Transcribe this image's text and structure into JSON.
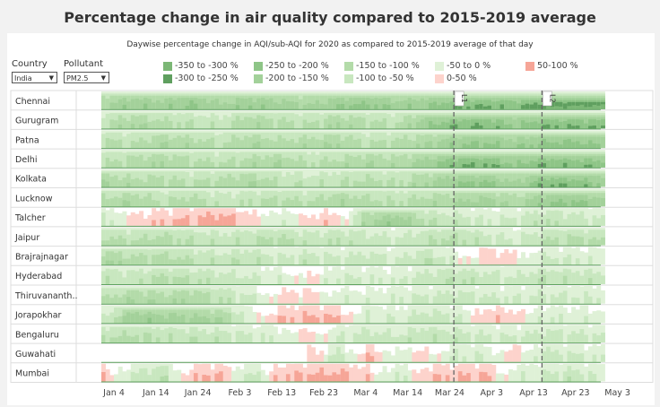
{
  "title": "Percentage change in air quality compared to 2015-2019 average",
  "filters": {
    "country_label": "Country",
    "country_value": "India",
    "pollutant_label": "Pollutant",
    "pollutant_value": "PM2.5"
  },
  "chart_data": {
    "type": "area",
    "subtitle": "Daywise percentage change in AQI/sub-AQI for 2020 as compared to 2015-2019 average of that day",
    "legend": [
      {
        "label": "-350 to -300 %",
        "color": "#7cb776"
      },
      {
        "label": "-300 to -250 %",
        "color": "#5f9f5f"
      },
      {
        "label": "-250 to -200 %",
        "color": "#8ec587"
      },
      {
        "label": "-200 to -150 %",
        "color": "#a3d19a"
      },
      {
        "label": "-150 to -100 %",
        "color": "#b3dba9"
      },
      {
        "label": "-100 to -50 %",
        "color": "#c8e7bf"
      },
      {
        "label": "-50 to 0 %",
        "color": "#dff1d7"
      },
      {
        "label": "0-50 %",
        "color": "#fdd3cc"
      },
      {
        "label": "50-100 %",
        "color": "#f6a597"
      }
    ],
    "x_ticks": [
      "Jan 4",
      "Jan 14",
      "Jan 24",
      "Feb 3",
      "Feb 13",
      "Feb 23",
      "Mar 4",
      "Mar 14",
      "Mar 24",
      "Apr 3",
      "Apr 13",
      "Apr 23",
      "May 3"
    ],
    "annotations": [
      {
        "label": "L1",
        "date": "Mar 25"
      },
      {
        "label": "L2",
        "date": "Apr 15"
      }
    ],
    "sample_interval_days": 7,
    "start_date": "Jan 1",
    "series": [
      {
        "name": "Chennai",
        "values": [
          -150,
          -200,
          -180,
          -220,
          -160,
          -200,
          -180,
          -150,
          -200,
          -220,
          -180,
          -200,
          -250,
          -260,
          -240,
          -300,
          -320,
          -330
        ]
      },
      {
        "name": "Gurugram",
        "values": [
          -100,
          -150,
          -120,
          -100,
          -80,
          -150,
          -120,
          -100,
          -150,
          -120,
          -100,
          -200,
          -250,
          -260,
          -200,
          -250,
          -250,
          -240
        ]
      },
      {
        "name": "Patna",
        "values": [
          -120,
          -100,
          -150,
          -130,
          -100,
          -150,
          -120,
          -130,
          -150,
          -100,
          -120,
          -150,
          -200,
          -220,
          -180,
          -220,
          -230,
          -200
        ]
      },
      {
        "name": "Delhi",
        "values": [
          -100,
          -130,
          -150,
          -120,
          -100,
          -130,
          -150,
          -100,
          -120,
          -150,
          -130,
          -180,
          -250,
          -260,
          -200,
          -250,
          -240,
          -230
        ]
      },
      {
        "name": "Kolkata",
        "values": [
          -150,
          -120,
          -130,
          -100,
          -120,
          -150,
          -100,
          -80,
          -100,
          -120,
          -100,
          -150,
          -200,
          -220,
          -150,
          -250,
          -240,
          -200
        ]
      },
      {
        "name": "Lucknow",
        "values": [
          -120,
          -150,
          -100,
          -130,
          -80,
          -100,
          -120,
          -100,
          -150,
          -120,
          -100,
          -130,
          -150,
          -180,
          -130,
          -200,
          -220,
          -180
        ]
      },
      {
        "name": "Talcher",
        "values": [
          -80,
          20,
          40,
          60,
          80,
          30,
          -50,
          20,
          30,
          -150,
          -200,
          -100,
          -80,
          -50,
          -60,
          -100,
          -80,
          -60
        ]
      },
      {
        "name": "Jaipur",
        "values": [
          -120,
          -100,
          -130,
          -100,
          -80,
          -100,
          -120,
          -80,
          -100,
          -80,
          -60,
          -100,
          -120,
          -80,
          -50,
          -100,
          -120,
          -100
        ]
      },
      {
        "name": "Brajrajnagar",
        "values": [
          -150,
          -120,
          -130,
          -100,
          -80,
          -100,
          -60,
          -80,
          -60,
          -80,
          -50,
          -100,
          -30,
          40,
          20,
          -60,
          -50,
          -40
        ]
      },
      {
        "name": "Hyderabad",
        "values": [
          -100,
          -80,
          -120,
          -100,
          -80,
          -60,
          -40,
          20,
          -60,
          -50,
          -40,
          -80,
          -100,
          -80,
          -60,
          -100,
          -90,
          -80
        ]
      },
      {
        "name": "Thiruvananthapuram",
        "values": [
          -100,
          -150,
          -130,
          -150,
          -100,
          -60,
          20,
          30,
          -40,
          -30,
          -50,
          -60,
          -80,
          -60,
          -50,
          -70,
          -60,
          -50
        ]
      },
      {
        "name": "Jorapokhar",
        "values": [
          -40,
          -200,
          -180,
          -170,
          -150,
          -30,
          40,
          60,
          50,
          -60,
          -40,
          -80,
          -60,
          40,
          30,
          -50,
          -40,
          -30
        ]
      },
      {
        "name": "Bengaluru",
        "values": [
          -100,
          -120,
          -100,
          -90,
          -80,
          -60,
          -40,
          30,
          -50,
          -80,
          -60,
          -100,
          -80,
          -60,
          -50,
          -80,
          -70,
          -60
        ]
      },
      {
        "name": "Guwahati",
        "values": [
          null,
          null,
          null,
          null,
          null,
          null,
          null,
          60,
          -80,
          50,
          -40,
          30,
          -60,
          -50,
          40,
          -80,
          -60,
          -40
        ]
      },
      {
        "name": "Mumbai",
        "values": [
          40,
          -60,
          -100,
          40,
          60,
          -80,
          50,
          60,
          70,
          30,
          -60,
          40,
          50,
          60,
          -40,
          -60,
          -80,
          -40
        ]
      }
    ],
    "city_labels": [
      "Chennai",
      "Gurugram",
      "Patna",
      "Delhi",
      "Kolkata",
      "Lucknow",
      "Talcher",
      "Jaipur",
      "Brajrajnagar",
      "Hyderabad",
      "Thiruvananth..",
      "Jorapokhar",
      "Bengaluru",
      "Guwahati",
      "Mumbai"
    ]
  }
}
